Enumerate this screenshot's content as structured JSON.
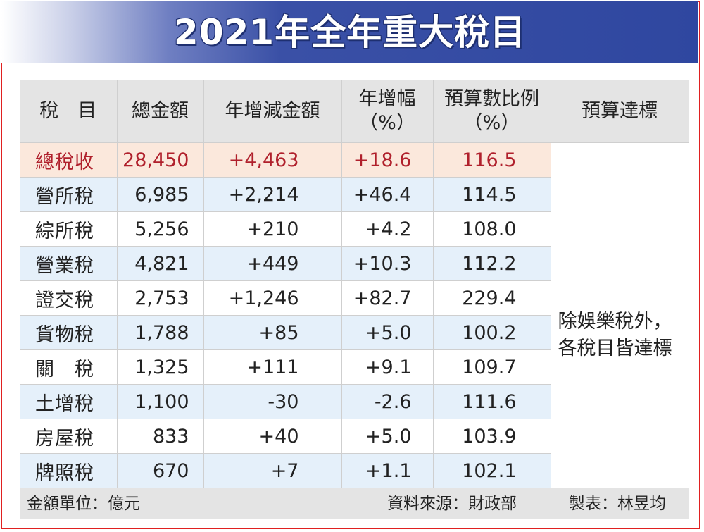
{
  "title": "2021年全年重大稅目",
  "chart_data": {
    "type": "table",
    "title": "2021年全年重大稅目",
    "columns": [
      "稅　目",
      "總金額",
      "年增減金額",
      "年增幅\n（%）",
      "預算數比例\n（%）",
      "預算達標"
    ],
    "header_lines": [
      [
        "稅　目"
      ],
      [
        "總金額"
      ],
      [
        "年增減金額"
      ],
      [
        "年增幅",
        "（%）"
      ],
      [
        "預算數比例",
        "（%）"
      ],
      [
        "預算達標"
      ]
    ],
    "rows": [
      {
        "name": "總稅收",
        "total": "28,450",
        "change": "+4,463",
        "growth": "+18.6",
        "budget_ratio": "116.5"
      },
      {
        "name": "營所稅",
        "total": "6,985",
        "change": "+2,214",
        "growth": "+46.4",
        "budget_ratio": "114.5"
      },
      {
        "name": "綜所稅",
        "total": "5,256",
        "change": "+210",
        "growth": "+4.2",
        "budget_ratio": "108.0"
      },
      {
        "name": "營業稅",
        "total": "4,821",
        "change": "+449",
        "growth": "+10.3",
        "budget_ratio": "112.2"
      },
      {
        "name": "證交稅",
        "total": "2,753",
        "change": "+1,246",
        "growth": "+82.7",
        "budget_ratio": "229.4"
      },
      {
        "name": "貨物稅",
        "total": "1,788",
        "change": "+85",
        "growth": "+5.0",
        "budget_ratio": "100.2"
      },
      {
        "name": "關　稅",
        "total": "1,325",
        "change": "+111",
        "growth": "+9.1",
        "budget_ratio": "109.7"
      },
      {
        "name": "土增稅",
        "total": "1,100",
        "change": "-30",
        "growth": "-2.6",
        "budget_ratio": "111.6"
      },
      {
        "name": "房屋稅",
        "total": "833",
        "change": "+40",
        "growth": "+5.0",
        "budget_ratio": "103.9"
      },
      {
        "name": "牌照稅",
        "total": "670",
        "change": "+7",
        "growth": "+1.1",
        "budget_ratio": "102.1"
      }
    ],
    "budget_note": "除娛樂稅外，各稅目皆達標"
  },
  "footer": {
    "unit": "金額單位：億元",
    "source": "資料來源：財政部",
    "maker": "製表：林昱均"
  },
  "colors": {
    "title_bar": "#2f47a0",
    "frame_border": "#e02020",
    "header_bg": "#e4e4e4",
    "row_tint": "#e5f0fa",
    "total_row_bg": "#fbe8dc",
    "total_row_text": "#b0202c"
  }
}
